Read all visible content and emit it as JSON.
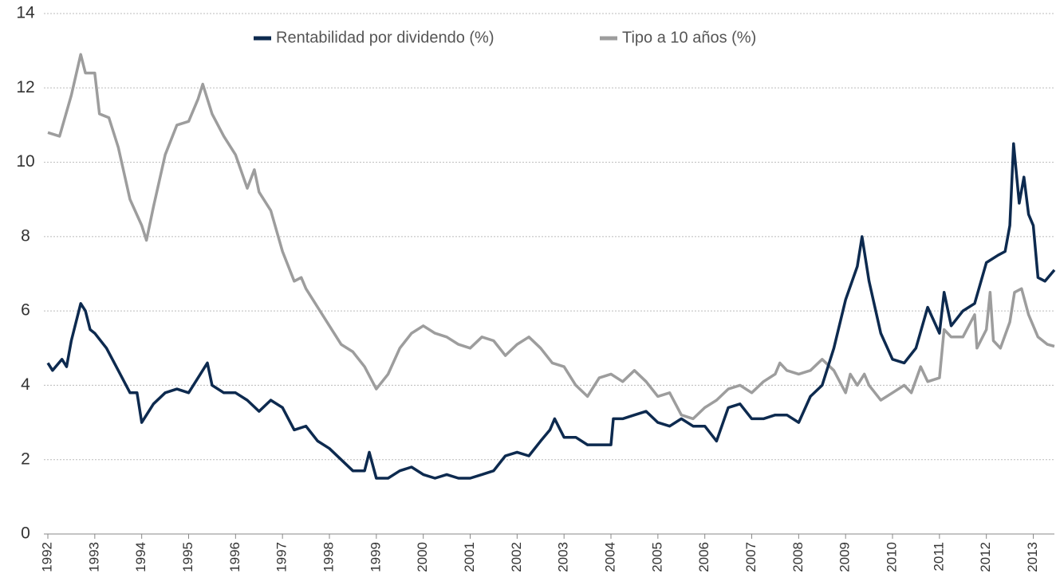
{
  "chart_data": {
    "type": "line",
    "xlim": [
      1992,
      2013.45
    ],
    "xticks": [
      1992,
      1993,
      1994,
      1995,
      1996,
      1997,
      1998,
      1999,
      2000,
      2001,
      2002,
      2003,
      2004,
      2005,
      2006,
      2007,
      2008,
      2009,
      2010,
      2011,
      2012,
      2013
    ],
    "ylim": [
      0,
      14
    ],
    "yticks": [
      0,
      2,
      4,
      6,
      8,
      10,
      12,
      14
    ],
    "grid": true,
    "legend": "top",
    "series": [
      {
        "name": "Rentabilidad por dividendo (%)",
        "color": "#0d2a4f",
        "x": [
          1992.0,
          1992.1,
          1992.3,
          1992.4,
          1992.5,
          1992.7,
          1992.8,
          1992.9,
          1993.0,
          1993.25,
          1993.5,
          1993.75,
          1993.9,
          1994.0,
          1994.25,
          1994.5,
          1994.75,
          1995.0,
          1995.25,
          1995.4,
          1995.5,
          1995.75,
          1996.0,
          1996.25,
          1996.5,
          1996.75,
          1997.0,
          1997.25,
          1997.5,
          1997.75,
          1998.0,
          1998.25,
          1998.5,
          1998.75,
          1998.85,
          1999.0,
          1999.25,
          1999.5,
          1999.75,
          2000.0,
          2000.25,
          2000.5,
          2000.75,
          2001.0,
          2001.25,
          2001.5,
          2001.75,
          2002.0,
          2002.25,
          2002.5,
          2002.7,
          2002.8,
          2003.0,
          2003.25,
          2003.5,
          2003.75,
          2004.0,
          2004.05,
          2004.25,
          2004.5,
          2004.75,
          2005.0,
          2005.25,
          2005.5,
          2005.75,
          2006.0,
          2006.25,
          2006.5,
          2006.75,
          2007.0,
          2007.25,
          2007.5,
          2007.75,
          2008.0,
          2008.25,
          2008.5,
          2008.75,
          2009.0,
          2009.25,
          2009.35,
          2009.5,
          2009.75,
          2010.0,
          2010.25,
          2010.5,
          2010.75,
          2011.0,
          2011.1,
          2011.25,
          2011.5,
          2011.75,
          2012.0,
          2012.25,
          2012.4,
          2012.5,
          2012.58,
          2012.7,
          2012.8,
          2012.9,
          2013.0,
          2013.1,
          2013.25,
          2013.45
        ],
        "values": [
          4.6,
          4.4,
          4.7,
          4.5,
          5.2,
          6.2,
          6.0,
          5.5,
          5.4,
          5.0,
          4.4,
          3.8,
          3.8,
          3.0,
          3.5,
          3.8,
          3.9,
          3.8,
          4.3,
          4.6,
          4.0,
          3.8,
          3.8,
          3.6,
          3.3,
          3.6,
          3.4,
          2.8,
          2.9,
          2.5,
          2.3,
          2.0,
          1.7,
          1.7,
          2.2,
          1.5,
          1.5,
          1.7,
          1.8,
          1.6,
          1.5,
          1.6,
          1.5,
          1.5,
          1.6,
          1.7,
          2.1,
          2.2,
          2.1,
          2.5,
          2.8,
          3.1,
          2.6,
          2.6,
          2.4,
          2.4,
          2.4,
          3.1,
          3.1,
          3.2,
          3.3,
          3.0,
          2.9,
          3.1,
          2.9,
          2.9,
          2.5,
          3.4,
          3.5,
          3.1,
          3.1,
          3.2,
          3.2,
          3.0,
          3.7,
          4.0,
          5.0,
          6.3,
          7.2,
          8.0,
          6.8,
          5.4,
          4.7,
          4.6,
          5.0,
          6.1,
          5.4,
          6.5,
          5.6,
          6.0,
          6.2,
          7.3,
          7.5,
          7.6,
          8.3,
          10.5,
          8.9,
          9.6,
          8.6,
          8.3,
          6.9,
          6.8,
          7.1
        ]
      },
      {
        "name": "Tipo a 10 años (%)",
        "color": "#9d9d9d",
        "x": [
          1992.0,
          1992.25,
          1992.5,
          1992.7,
          1992.8,
          1993.0,
          1993.1,
          1993.3,
          1993.5,
          1993.75,
          1994.0,
          1994.1,
          1994.25,
          1994.5,
          1994.75,
          1995.0,
          1995.2,
          1995.3,
          1995.5,
          1995.75,
          1996.0,
          1996.25,
          1996.4,
          1996.5,
          1996.75,
          1997.0,
          1997.25,
          1997.4,
          1997.5,
          1997.75,
          1998.0,
          1998.25,
          1998.5,
          1998.75,
          1999.0,
          1999.25,
          1999.5,
          1999.75,
          2000.0,
          2000.25,
          2000.5,
          2000.75,
          2001.0,
          2001.25,
          2001.5,
          2001.75,
          2002.0,
          2002.25,
          2002.5,
          2002.75,
          2003.0,
          2003.25,
          2003.5,
          2003.75,
          2004.0,
          2004.25,
          2004.5,
          2004.75,
          2005.0,
          2005.25,
          2005.5,
          2005.75,
          2006.0,
          2006.25,
          2006.5,
          2006.75,
          2007.0,
          2007.25,
          2007.5,
          2007.6,
          2007.75,
          2008.0,
          2008.25,
          2008.5,
          2008.75,
          2009.0,
          2009.1,
          2009.25,
          2009.4,
          2009.5,
          2009.75,
          2010.0,
          2010.25,
          2010.4,
          2010.6,
          2010.75,
          2011.0,
          2011.1,
          2011.25,
          2011.5,
          2011.75,
          2011.8,
          2012.0,
          2012.08,
          2012.15,
          2012.3,
          2012.5,
          2012.6,
          2012.75,
          2012.9,
          2013.1,
          2013.3,
          2013.45
        ],
        "values": [
          10.8,
          10.7,
          11.8,
          12.9,
          12.4,
          12.4,
          11.3,
          11.2,
          10.4,
          9.0,
          8.3,
          7.9,
          8.8,
          10.2,
          11.0,
          11.1,
          11.7,
          12.1,
          11.3,
          10.7,
          10.2,
          9.3,
          9.8,
          9.2,
          8.7,
          7.6,
          6.8,
          6.9,
          6.6,
          6.1,
          5.6,
          5.1,
          4.9,
          4.5,
          3.9,
          4.3,
          5.0,
          5.4,
          5.6,
          5.4,
          5.3,
          5.1,
          5.0,
          5.3,
          5.2,
          4.8,
          5.1,
          5.3,
          5.0,
          4.6,
          4.5,
          4.0,
          3.7,
          4.2,
          4.3,
          4.1,
          4.4,
          4.1,
          3.7,
          3.8,
          3.2,
          3.1,
          3.4,
          3.6,
          3.9,
          4.0,
          3.8,
          4.1,
          4.3,
          4.6,
          4.4,
          4.3,
          4.4,
          4.7,
          4.4,
          3.8,
          4.3,
          4.0,
          4.3,
          4.0,
          3.6,
          3.8,
          4.0,
          3.8,
          4.5,
          4.1,
          4.2,
          5.5,
          5.3,
          5.3,
          5.9,
          5.0,
          5.5,
          6.5,
          5.2,
          5.0,
          5.7,
          6.5,
          6.6,
          5.9,
          5.3,
          5.1,
          5.05
        ]
      }
    ]
  }
}
